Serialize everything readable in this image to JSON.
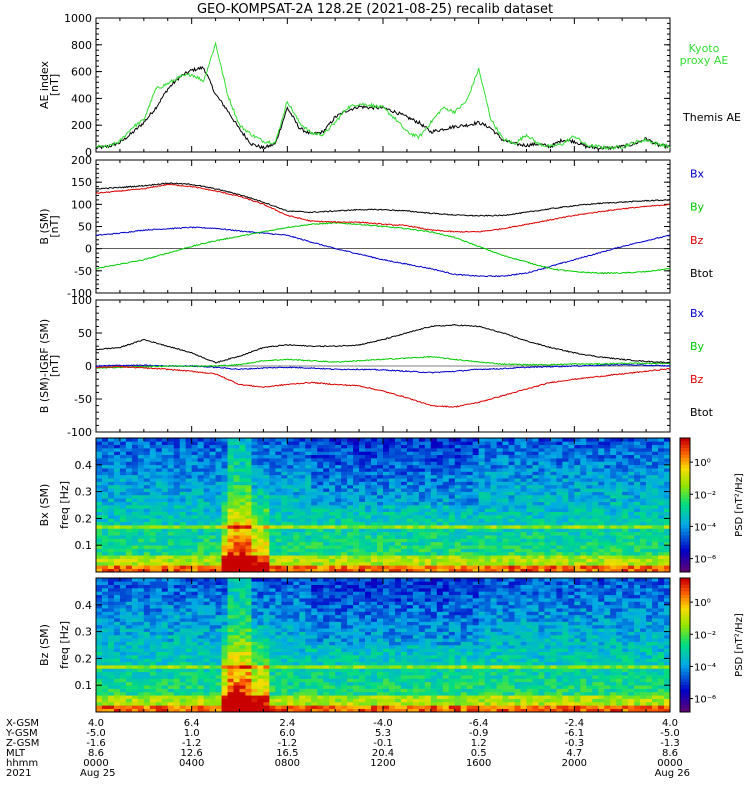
{
  "title": "GEO-KOMPSAT-2A 128.2E (2021-08-25) recalib dataset",
  "colors": {
    "black": "#000000",
    "blue": "#0000cc",
    "green": "#00cc00",
    "red": "#dd0000",
    "kyoto": "#33dd33"
  },
  "chart_data": [
    {
      "type": "line",
      "ylabel": "AE index",
      "yunit": "[nT]",
      "ylim": [
        0,
        1000
      ],
      "yticks": [
        "0",
        "200",
        "400",
        "600",
        "800",
        "1000"
      ],
      "series": [
        {
          "name": "Themis AE",
          "color": "#000000",
          "x": [
            0,
            0.5,
            1,
            1.5,
            2,
            2.5,
            3,
            3.5,
            4,
            4.5,
            5,
            5.5,
            6,
            6.5,
            7,
            7.5,
            8,
            8.5,
            9,
            9.5,
            10,
            10.5,
            11,
            11.5,
            12,
            12.5,
            13,
            13.5,
            14,
            14.5,
            15,
            15.5,
            16,
            16.5,
            17,
            17.5,
            18,
            18.5,
            19,
            19.5,
            20,
            20.5,
            21,
            21.5,
            22,
            22.5,
            23,
            23.5,
            24
          ],
          "values": [
            30,
            40,
            70,
            140,
            220,
            330,
            470,
            560,
            610,
            630,
            430,
            310,
            170,
            60,
            30,
            60,
            330,
            180,
            130,
            150,
            260,
            310,
            340,
            330,
            330,
            300,
            260,
            220,
            150,
            170,
            190,
            200,
            220,
            180,
            90,
            60,
            50,
            60,
            40,
            90,
            80,
            40,
            30,
            30,
            40,
            60,
            100,
            50,
            40
          ]
        },
        {
          "name": "Kyoto proxy AE",
          "color": "#33dd33",
          "x": [
            0,
            0.5,
            1,
            1.5,
            2,
            2.5,
            3,
            3.5,
            4,
            4.5,
            5,
            5.5,
            6,
            6.5,
            7,
            7.5,
            8,
            8.5,
            9,
            9.5,
            10,
            10.5,
            11,
            11.5,
            12,
            12.5,
            13,
            13.5,
            14,
            14.5,
            15,
            15.5,
            16,
            16.5,
            17,
            17.5,
            18,
            18.5,
            19,
            19.5,
            20,
            20.5,
            21,
            21.5,
            22,
            22.5,
            23,
            23.5,
            24
          ],
          "values": [
            40,
            40,
            80,
            180,
            240,
            470,
            510,
            560,
            580,
            530,
            810,
            430,
            200,
            130,
            80,
            70,
            380,
            220,
            140,
            130,
            220,
            330,
            360,
            350,
            330,
            250,
            150,
            110,
            220,
            330,
            300,
            380,
            620,
            250,
            100,
            60,
            130,
            60,
            40,
            60,
            120,
            50,
            40,
            30,
            40,
            70,
            90,
            60,
            40
          ]
        }
      ]
    },
    {
      "type": "line",
      "ylabel": "B (SM)",
      "yunit": "[nT]",
      "ylim": [
        -100,
        200
      ],
      "yticks": [
        "-100",
        "-50",
        "0",
        "50",
        "100",
        "150",
        "200"
      ],
      "series": [
        {
          "name": "Bx",
          "color": "#0000cc",
          "x": [
            0,
            1,
            2,
            3,
            4,
            5,
            6,
            7,
            8,
            9,
            10,
            11,
            12,
            13,
            14,
            15,
            16,
            17,
            18,
            19,
            20,
            21,
            22,
            23,
            24
          ],
          "values": [
            30,
            35,
            42,
            45,
            48,
            46,
            40,
            35,
            30,
            15,
            0,
            -12,
            -25,
            -35,
            -45,
            -58,
            -62,
            -62,
            -55,
            -40,
            -25,
            -10,
            5,
            18,
            30
          ]
        },
        {
          "name": "By",
          "color": "#00cc00",
          "x": [
            0,
            1,
            2,
            3,
            4,
            5,
            6,
            7,
            8,
            9,
            10,
            11,
            12,
            13,
            14,
            15,
            16,
            17,
            18,
            19,
            20,
            21,
            22,
            23,
            24
          ],
          "values": [
            -45,
            -35,
            -25,
            -10,
            5,
            18,
            28,
            38,
            48,
            55,
            58,
            55,
            50,
            45,
            38,
            25,
            5,
            -15,
            -30,
            -45,
            -52,
            -55,
            -55,
            -52,
            -45
          ]
        },
        {
          "name": "Bz",
          "color": "#dd0000",
          "x": [
            0,
            1,
            2,
            3,
            4,
            5,
            6,
            7,
            8,
            9,
            10,
            11,
            12,
            13,
            14,
            15,
            16,
            17,
            18,
            19,
            20,
            21,
            22,
            23,
            24
          ],
          "values": [
            125,
            130,
            135,
            145,
            140,
            130,
            118,
            100,
            75,
            62,
            60,
            60,
            55,
            52,
            42,
            38,
            38,
            45,
            55,
            65,
            75,
            83,
            90,
            95,
            100
          ]
        },
        {
          "name": "Btot",
          "color": "#000000",
          "x": [
            0,
            1,
            2,
            3,
            4,
            5,
            6,
            7,
            8,
            9,
            10,
            11,
            12,
            13,
            14,
            15,
            16,
            17,
            18,
            19,
            20,
            21,
            22,
            23,
            24
          ],
          "values": [
            135,
            138,
            142,
            148,
            145,
            135,
            122,
            105,
            85,
            82,
            85,
            88,
            88,
            85,
            80,
            76,
            74,
            75,
            82,
            90,
            97,
            102,
            105,
            108,
            110
          ]
        }
      ]
    },
    {
      "type": "line",
      "ylabel": "B (SM)-IGRF (SM)",
      "yunit": "[nT]",
      "ylim": [
        -100,
        100
      ],
      "yticks": [
        "-100",
        "-50",
        "0",
        "50",
        "100"
      ],
      "series": [
        {
          "name": "Bx",
          "color": "#0000cc",
          "x": [
            0,
            1,
            2,
            3,
            4,
            5,
            6,
            7,
            8,
            9,
            10,
            11,
            12,
            13,
            14,
            15,
            16,
            17,
            18,
            19,
            20,
            21,
            22,
            23,
            24
          ],
          "values": [
            0,
            1,
            1,
            0,
            0,
            -2,
            -5,
            -3,
            -2,
            -3,
            -5,
            -5,
            -6,
            -8,
            -10,
            -8,
            -5,
            -4,
            -2,
            -1,
            0,
            1,
            2,
            1,
            0
          ]
        },
        {
          "name": "By",
          "color": "#00cc00",
          "x": [
            0,
            1,
            2,
            3,
            4,
            5,
            6,
            7,
            8,
            9,
            10,
            11,
            12,
            13,
            14,
            15,
            16,
            17,
            18,
            19,
            20,
            21,
            22,
            23,
            24
          ],
          "values": [
            -3,
            -2,
            -1,
            0,
            0,
            0,
            2,
            8,
            10,
            8,
            6,
            8,
            10,
            12,
            14,
            10,
            6,
            3,
            2,
            2,
            3,
            3,
            4,
            4,
            4
          ]
        },
        {
          "name": "Bz",
          "color": "#dd0000",
          "x": [
            0,
            1,
            2,
            3,
            4,
            5,
            6,
            7,
            8,
            9,
            10,
            11,
            12,
            13,
            14,
            15,
            16,
            17,
            18,
            19,
            20,
            21,
            22,
            23,
            24
          ],
          "values": [
            -2,
            -1,
            -3,
            -5,
            -8,
            -12,
            -28,
            -32,
            -28,
            -25,
            -28,
            -30,
            -38,
            -48,
            -60,
            -62,
            -55,
            -45,
            -35,
            -25,
            -20,
            -16,
            -12,
            -8,
            -4
          ]
        },
        {
          "name": "Btot",
          "color": "#000000",
          "x": [
            0,
            1,
            2,
            3,
            4,
            5,
            6,
            7,
            8,
            9,
            10,
            11,
            12,
            13,
            14,
            15,
            16,
            17,
            18,
            19,
            20,
            21,
            22,
            23,
            24
          ],
          "values": [
            25,
            28,
            40,
            30,
            20,
            5,
            15,
            28,
            32,
            30,
            30,
            32,
            40,
            50,
            60,
            62,
            60,
            50,
            38,
            28,
            20,
            14,
            10,
            7,
            5
          ]
        }
      ]
    },
    {
      "type": "heatmap",
      "ylabel": "Bx (SM)",
      "yunit": "freq [Hz]",
      "ylim": [
        0,
        0.5
      ],
      "yticks": [
        "0.1",
        "0.2",
        "0.3",
        "0.4"
      ],
      "colorbar": {
        "label": "PSD [nT²/Hz]",
        "ticks": [
          "10⁰",
          "10⁻²",
          "10⁻⁴",
          "10⁻⁶"
        ]
      }
    },
    {
      "type": "heatmap",
      "ylabel": "Bz (SM)",
      "yunit": "freq [Hz]",
      "ylim": [
        0,
        0.5
      ],
      "yticks": [
        "0.1",
        "0.2",
        "0.3",
        "0.4"
      ],
      "colorbar": {
        "label": "PSD [nT²/Hz]",
        "ticks": [
          "10⁰",
          "10⁻²",
          "10⁻⁴",
          "10⁻⁶"
        ]
      }
    }
  ],
  "ephemeris": {
    "labels": [
      "X-GSM",
      "Y-GSM",
      "Z-GSM",
      "MLT",
      "hhmm",
      "2021"
    ],
    "columns": [
      [
        "4.0",
        "-5.0",
        "-1.6",
        "8.6",
        "0000",
        "Aug 25"
      ],
      [
        "6.4",
        "1.0",
        "-1.2",
        "12.6",
        "0400",
        ""
      ],
      [
        "2.4",
        "6.0",
        "-1.2",
        "16.5",
        "0800",
        ""
      ],
      [
        "-4.0",
        "5.3",
        "-0.1",
        "20.4",
        "1200",
        ""
      ],
      [
        "-6.4",
        "-0.9",
        "1.2",
        "0.5",
        "1600",
        ""
      ],
      [
        "-2.4",
        "-6.1",
        "-0.3",
        "4.7",
        "2000",
        ""
      ],
      [
        "4.0",
        "-5.0",
        "-1.3",
        "8.6",
        "0000",
        "Aug 26"
      ]
    ]
  }
}
